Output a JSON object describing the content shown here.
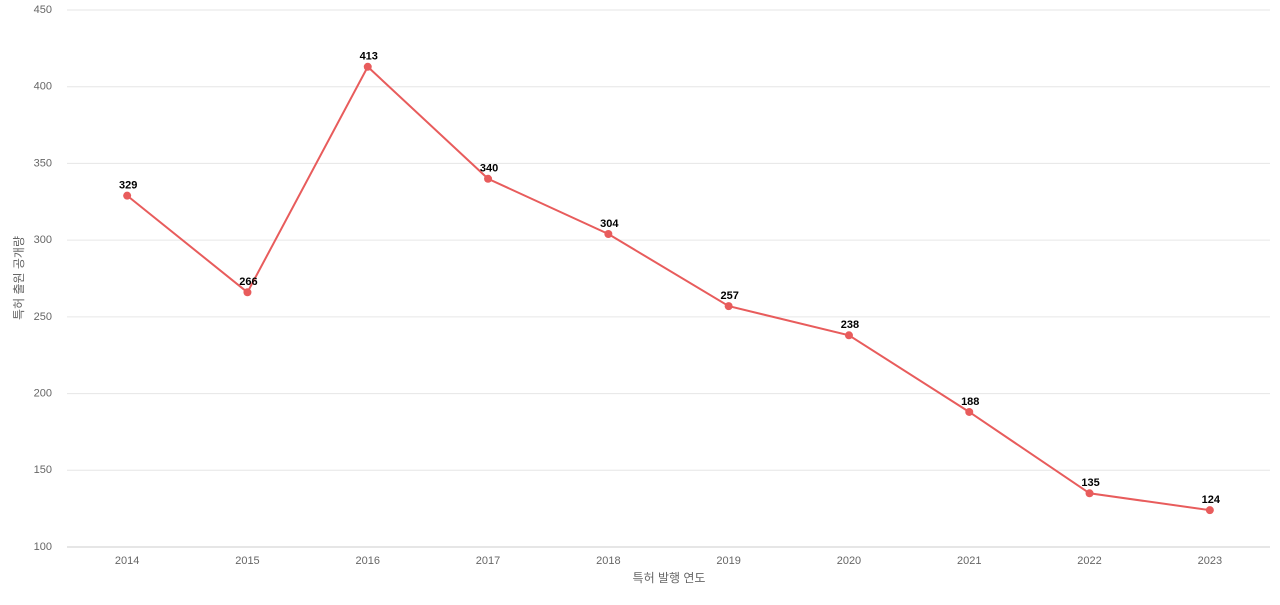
{
  "chart_data": {
    "type": "line",
    "x_label": "특허 발행 연도",
    "y_label": "특허 출원 공개량",
    "categories": [
      "2014",
      "2015",
      "2016",
      "2017",
      "2018",
      "2019",
      "2020",
      "2021",
      "2022",
      "2023"
    ],
    "series": [
      {
        "color": "#e85c5c",
        "values": [
          329,
          266,
          413,
          340,
          304,
          257,
          238,
          188,
          135,
          124
        ]
      }
    ],
    "ylim": [
      100,
      450
    ],
    "yticks": [
      100,
      150,
      200,
      250,
      300,
      350,
      400,
      450
    ],
    "grid": true
  }
}
